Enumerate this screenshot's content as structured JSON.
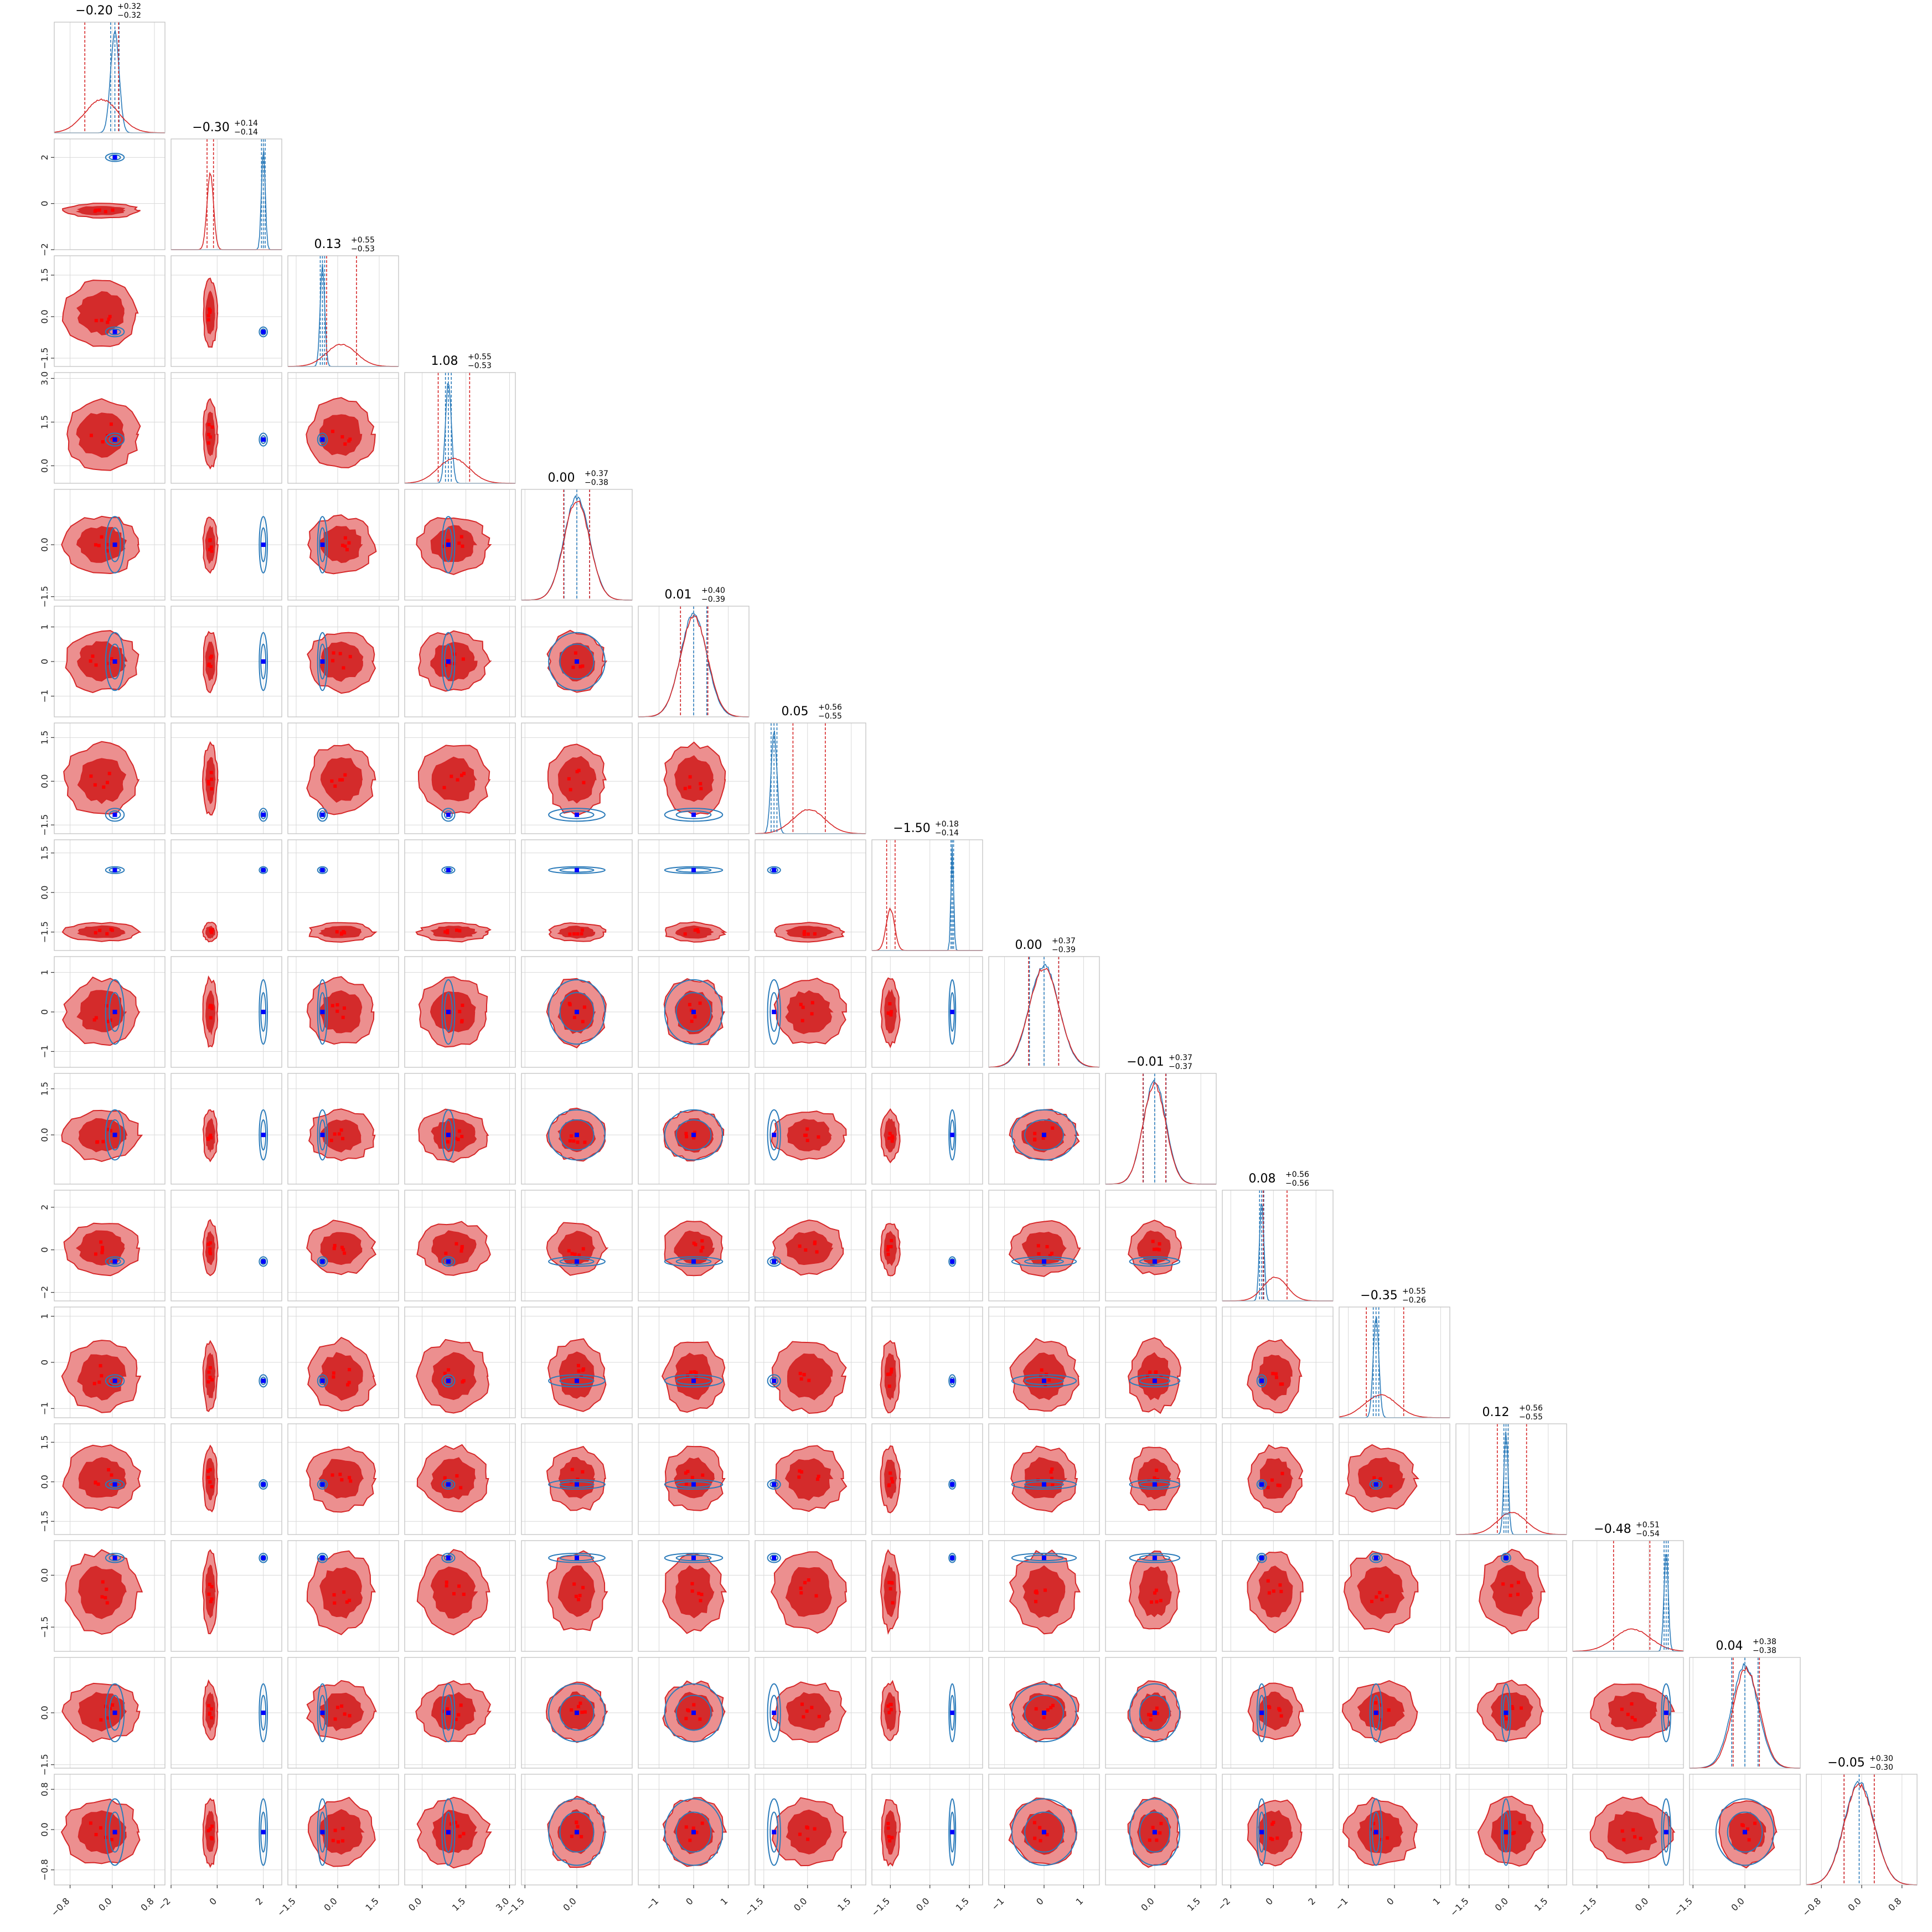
{
  "chart_data": {
    "type": "corner",
    "grid": true,
    "colors": {
      "reference": "#2b7bba",
      "posterior": "#d62728",
      "posterior_fill_inner": "#d42b2b",
      "posterior_fill_outer": "#ec8f8f",
      "truth_marker": "#0000ff",
      "sample_marker": "#ff0000"
    },
    "parameters": [
      {
        "id": "p1",
        "median": -0.2,
        "plus": 0.32,
        "minus": 0.32,
        "range": [
          -1.1,
          1.0
        ],
        "ticks": [
          "-0.8",
          "0.0",
          "0.8"
        ],
        "tick_values": [
          -0.8,
          0.0,
          0.8
        ],
        "title_main": "−0.20",
        "title_sup": "+0.32",
        "title_sub": "−0.32",
        "ref_mean": 0.05,
        "ref_sd": 0.08,
        "post_mean": -0.2,
        "post_sd": 0.32
      },
      {
        "id": "p2",
        "median": -0.3,
        "plus": 0.14,
        "minus": 0.14,
        "range": [
          -2.0,
          2.8
        ],
        "ticks": [
          "-2",
          "0",
          "2"
        ],
        "tick_values": [
          -2,
          0,
          2
        ],
        "title_main": "−0.30",
        "title_sup": "+0.14",
        "title_sub": "−0.14",
        "ref_mean": 2.0,
        "ref_sd": 0.08,
        "post_mean": -0.3,
        "post_sd": 0.14
      },
      {
        "id": "p3",
        "median": 0.13,
        "plus": 0.55,
        "minus": 0.53,
        "range": [
          -1.8,
          2.2
        ],
        "ticks": [
          "-1.5",
          "0.0",
          "1.5"
        ],
        "tick_values": [
          -1.5,
          0.0,
          1.5
        ],
        "title_main": "0.13",
        "title_sup": "+0.55",
        "title_sub": "−0.53",
        "ref_mean": -0.55,
        "ref_sd": 0.08,
        "post_mean": 0.13,
        "post_sd": 0.54
      },
      {
        "id": "p4",
        "median": 1.08,
        "plus": 0.55,
        "minus": 0.53,
        "range": [
          -0.6,
          3.2
        ],
        "ticks": [
          "0.0",
          "1.5",
          "3.0"
        ],
        "tick_values": [
          0.0,
          1.5,
          3.0
        ],
        "title_main": "1.08",
        "title_sup": "+0.55",
        "title_sub": "−0.53",
        "ref_mean": 0.9,
        "ref_sd": 0.1,
        "post_mean": 1.08,
        "post_sd": 0.54
      },
      {
        "id": "p5",
        "median": 0.0,
        "plus": 0.37,
        "minus": 0.38,
        "range": [
          -1.6,
          1.6
        ],
        "ticks": [
          "-1.5",
          "0.0"
        ],
        "tick_values": [
          -1.5,
          0.0
        ],
        "title_main": "0.00",
        "title_sup": "+0.37",
        "title_sub": "−0.38",
        "ref_mean": 0.0,
        "ref_sd": 0.37,
        "post_mean": 0.0,
        "post_sd": 0.37
      },
      {
        "id": "p6",
        "median": 0.01,
        "plus": 0.4,
        "minus": 0.39,
        "range": [
          -1.6,
          1.6
        ],
        "ticks": [
          "-1",
          "0",
          "1"
        ],
        "tick_values": [
          -1,
          0,
          1
        ],
        "title_main": "0.01",
        "title_sup": "+0.40",
        "title_sub": "−0.39",
        "ref_mean": 0.0,
        "ref_sd": 0.38,
        "post_mean": 0.01,
        "post_sd": 0.39
      },
      {
        "id": "p7",
        "median": 0.05,
        "plus": 0.56,
        "minus": 0.55,
        "range": [
          -1.8,
          2.0
        ],
        "ticks": [
          "-1.5",
          "0.0",
          "1.5"
        ],
        "tick_values": [
          -1.5,
          0.0,
          1.5
        ],
        "title_main": "0.05",
        "title_sup": "+0.56",
        "title_sub": "−0.55",
        "ref_mean": -1.15,
        "ref_sd": 0.1,
        "post_mean": 0.05,
        "post_sd": 0.55
      },
      {
        "id": "p8",
        "median": -1.5,
        "plus": 0.18,
        "minus": 0.14,
        "range": [
          -2.2,
          2.0
        ],
        "ticks": [
          "-1.5",
          "0.0",
          "1.5"
        ],
        "tick_values": [
          -1.5,
          0.0,
          1.5
        ],
        "title_main": "−1.50",
        "title_sup": "+0.18",
        "title_sub": "−0.14",
        "ref_mean": 0.85,
        "ref_sd": 0.05,
        "post_mean": -1.5,
        "post_sd": 0.16
      },
      {
        "id": "p9",
        "median": 0.0,
        "plus": 0.37,
        "minus": 0.39,
        "range": [
          -1.4,
          1.4
        ],
        "ticks": [
          "-1",
          "0",
          "1"
        ],
        "tick_values": [
          -1,
          0,
          1
        ],
        "title_main": "0.00",
        "title_sup": "+0.37",
        "title_sub": "−0.39",
        "ref_mean": 0.0,
        "ref_sd": 0.37,
        "post_mean": 0.0,
        "post_sd": 0.38
      },
      {
        "id": "p10",
        "median": -0.01,
        "plus": 0.37,
        "minus": 0.37,
        "range": [
          -1.6,
          2.0
        ],
        "ticks": [
          "0.0",
          "1.5"
        ],
        "tick_values": [
          0.0,
          1.5
        ],
        "title_main": "−0.01",
        "title_sup": "+0.37",
        "title_sub": "−0.37",
        "ref_mean": 0.0,
        "ref_sd": 0.37,
        "post_mean": -0.01,
        "post_sd": 0.37
      },
      {
        "id": "p11",
        "median": 0.08,
        "plus": 0.56,
        "minus": 0.56,
        "range": [
          -2.4,
          2.8
        ],
        "ticks": [
          "-2",
          "0",
          "2"
        ],
        "tick_values": [
          -2,
          0,
          2
        ],
        "title_main": "0.08",
        "title_sup": "+0.56",
        "title_sub": "−0.56",
        "ref_mean": -0.55,
        "ref_sd": 0.1,
        "post_mean": 0.08,
        "post_sd": 0.56
      },
      {
        "id": "p12",
        "median": -0.35,
        "plus": 0.55,
        "minus": 0.26,
        "range": [
          -1.2,
          1.2
        ],
        "ticks": [
          "-1",
          "0",
          "1"
        ],
        "tick_values": [
          -1,
          0,
          1
        ],
        "title_main": "−0.35",
        "title_sup": "+0.55",
        "title_sub": "−0.26",
        "ref_mean": -0.4,
        "ref_sd": 0.06,
        "post_mean": -0.3,
        "post_sd": 0.35
      },
      {
        "id": "p13",
        "median": 0.12,
        "plus": 0.56,
        "minus": 0.55,
        "range": [
          -2.0,
          2.2
        ],
        "ticks": [
          "-1.5",
          "0.0",
          "1.5"
        ],
        "tick_values": [
          -1.5,
          0.0,
          1.5
        ],
        "title_main": "0.12",
        "title_sup": "+0.56",
        "title_sub": "−0.55",
        "ref_mean": -0.1,
        "ref_sd": 0.08,
        "post_mean": 0.12,
        "post_sd": 0.55
      },
      {
        "id": "p14",
        "median": -0.48,
        "plus": 0.51,
        "minus": 0.54,
        "range": [
          -2.2,
          1.0
        ],
        "ticks": [
          "-1.5",
          "0.0"
        ],
        "tick_values": [
          -1.5,
          0.0
        ],
        "title_main": "−0.48",
        "title_sup": "+0.51",
        "title_sub": "−0.54",
        "ref_mean": 0.5,
        "ref_sd": 0.06,
        "post_mean": -0.48,
        "post_sd": 0.52
      },
      {
        "id": "p15",
        "median": 0.04,
        "plus": 0.38,
        "minus": 0.38,
        "range": [
          -1.6,
          1.6
        ],
        "ticks": [
          "-1.5",
          "0.0"
        ],
        "tick_values": [
          -1.5,
          0.0
        ],
        "title_main": "0.04",
        "title_sup": "+0.38",
        "title_sub": "−0.38",
        "ref_mean": 0.0,
        "ref_sd": 0.38,
        "post_mean": 0.04,
        "post_sd": 0.38
      },
      {
        "id": "p16",
        "median": -0.05,
        "plus": 0.3,
        "minus": 0.3,
        "range": [
          -1.1,
          1.1
        ],
        "ticks": [
          "-0.8",
          "0.0",
          "0.8"
        ],
        "tick_values": [
          -0.8,
          0.0,
          0.8
        ],
        "title_main": "−0.05",
        "title_sup": "+0.30",
        "title_sub": "−0.30",
        "ref_mean": -0.05,
        "ref_sd": 0.3,
        "post_mean": -0.05,
        "post_sd": 0.3
      }
    ]
  }
}
